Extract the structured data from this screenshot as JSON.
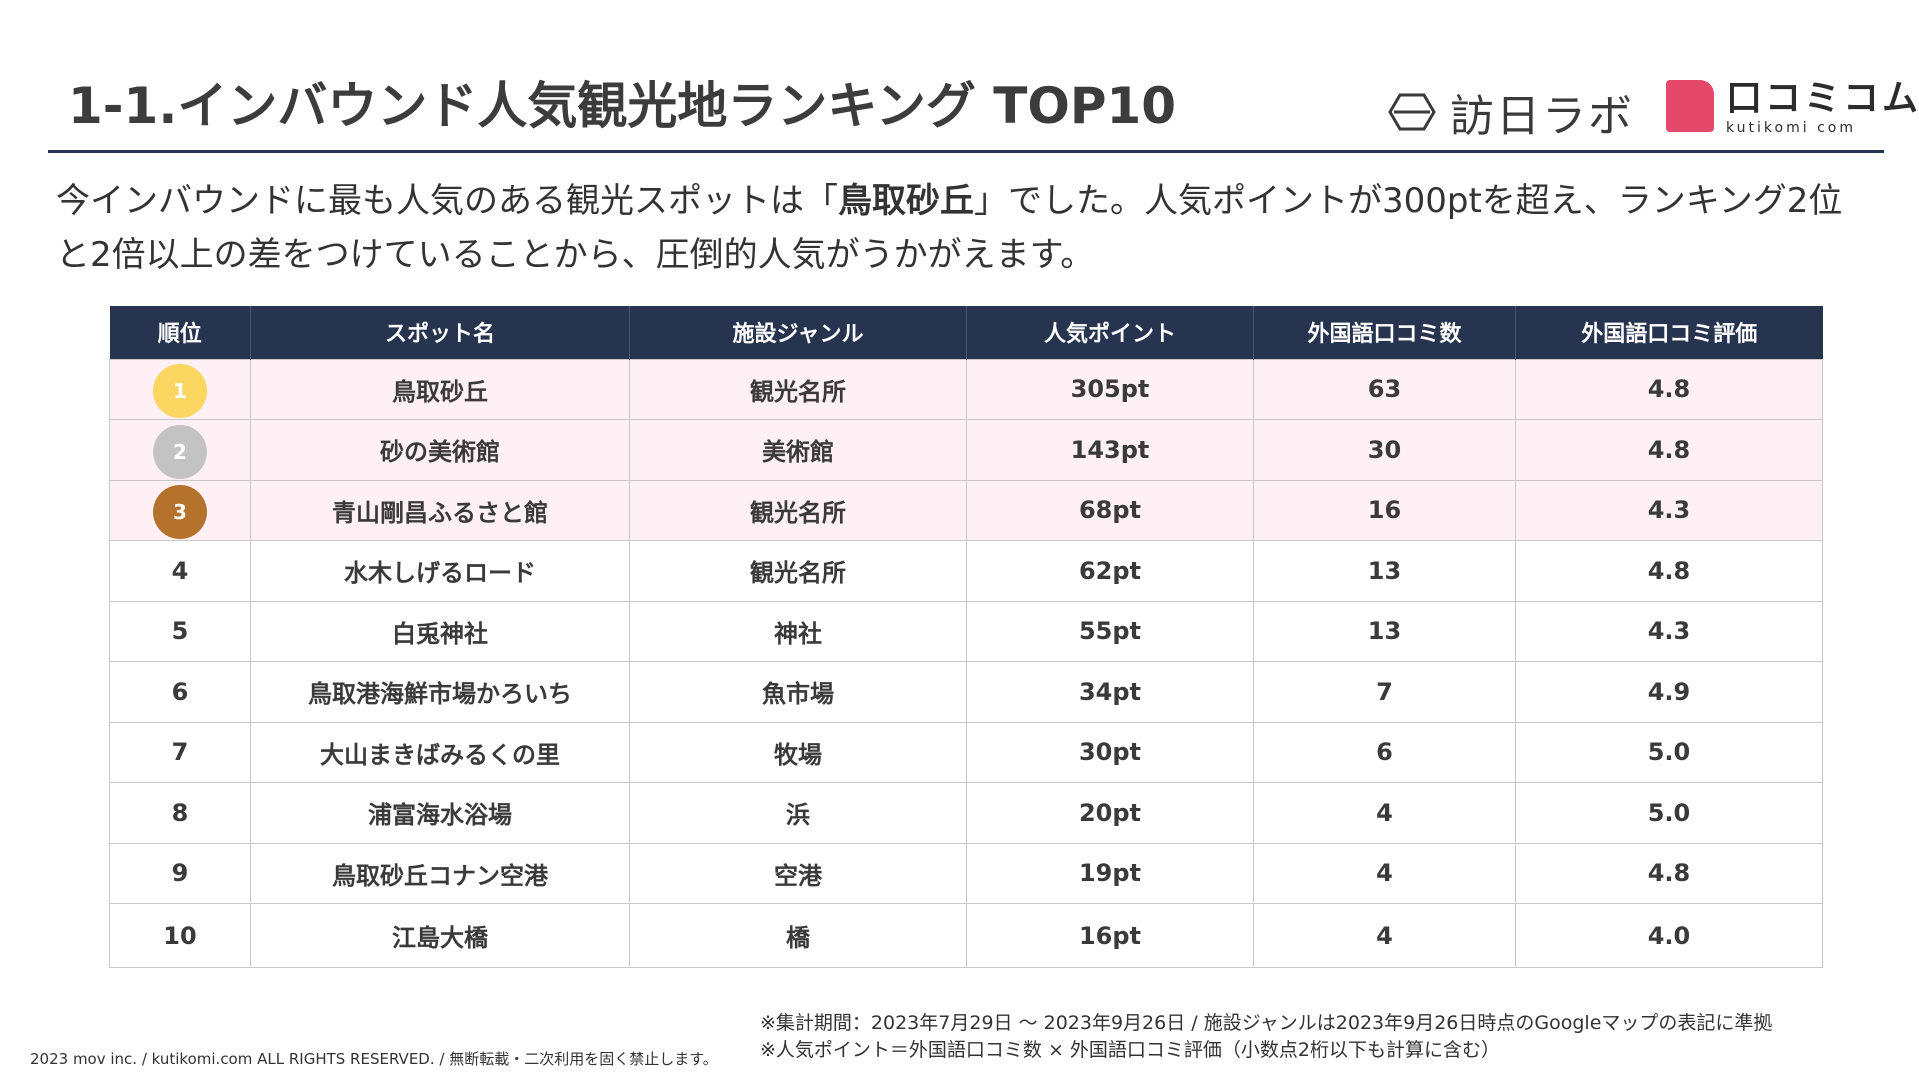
{
  "title": "1-1.インバウンド人気観光地ランキング TOP10",
  "logos": {
    "houjin_labo": "訪日ラボ",
    "kutikomi_jp": "口コミコム",
    "kutikomi_en": "kutikomi com"
  },
  "lead": {
    "before": "今インバウンドに最も人気のある観光スポットは「",
    "highlight": "鳥取砂丘",
    "after": "」でした。人気ポイントが300ptを超え、ランキング2位と2倍以上の差をつけていることから、圧倒的人気がうかがえます。"
  },
  "table": {
    "headers": [
      "順位",
      "スポット名",
      "施設ジャンル",
      "人気ポイント",
      "外国語口コミ数",
      "外国語口コミ評価"
    ],
    "rows": [
      {
        "rank": "1",
        "name": "鳥取砂丘",
        "genre": "観光名所",
        "points": "305pt",
        "reviews": "63",
        "rating": "4.8"
      },
      {
        "rank": "2",
        "name": "砂の美術館",
        "genre": "美術館",
        "points": "143pt",
        "reviews": "30",
        "rating": "4.8"
      },
      {
        "rank": "3",
        "name": "青山剛昌ふるさと館",
        "genre": "観光名所",
        "points": "68pt",
        "reviews": "16",
        "rating": "4.3"
      },
      {
        "rank": "4",
        "name": "水木しげるロード",
        "genre": "観光名所",
        "points": "62pt",
        "reviews": "13",
        "rating": "4.8"
      },
      {
        "rank": "5",
        "name": "白兎神社",
        "genre": "神社",
        "points": "55pt",
        "reviews": "13",
        "rating": "4.3"
      },
      {
        "rank": "6",
        "name": "鳥取港海鮮市場かろいち",
        "genre": "魚市場",
        "points": "34pt",
        "reviews": "7",
        "rating": "4.9"
      },
      {
        "rank": "7",
        "name": "大山まきばみるくの里",
        "genre": "牧場",
        "points": "30pt",
        "reviews": "6",
        "rating": "5.0"
      },
      {
        "rank": "8",
        "name": "浦富海水浴場",
        "genre": "浜",
        "points": "20pt",
        "reviews": "4",
        "rating": "5.0"
      },
      {
        "rank": "9",
        "name": "鳥取砂丘コナン空港",
        "genre": "空港",
        "points": "19pt",
        "reviews": "4",
        "rating": "4.8"
      },
      {
        "rank": "10",
        "name": "江島大橋",
        "genre": "橋",
        "points": "16pt",
        "reviews": "4",
        "rating": "4.0"
      }
    ]
  },
  "notes": [
    "※集計期間：2023年7月29日 〜 2023年9月26日 / 施設ジャンルは2023年9月26日時点のGoogleマップの表記に準拠",
    "※人気ポイント＝外国語口コミ数 × 外国語口コミ評価（小数点2桁以下も計算に含む）"
  ],
  "copyright": "2023 mov inc. / kutikomi.com ALL RIGHTS RESERVED. / 無断転載・二次利用を固く禁止します。",
  "colors": {
    "header_bg": "#27344f",
    "top3_row_bg": "#fff0f5",
    "gold": "#fbd661",
    "silver": "#c3c3c3",
    "bronze": "#b5722d",
    "kutikomi_pink": "#e4486b"
  }
}
